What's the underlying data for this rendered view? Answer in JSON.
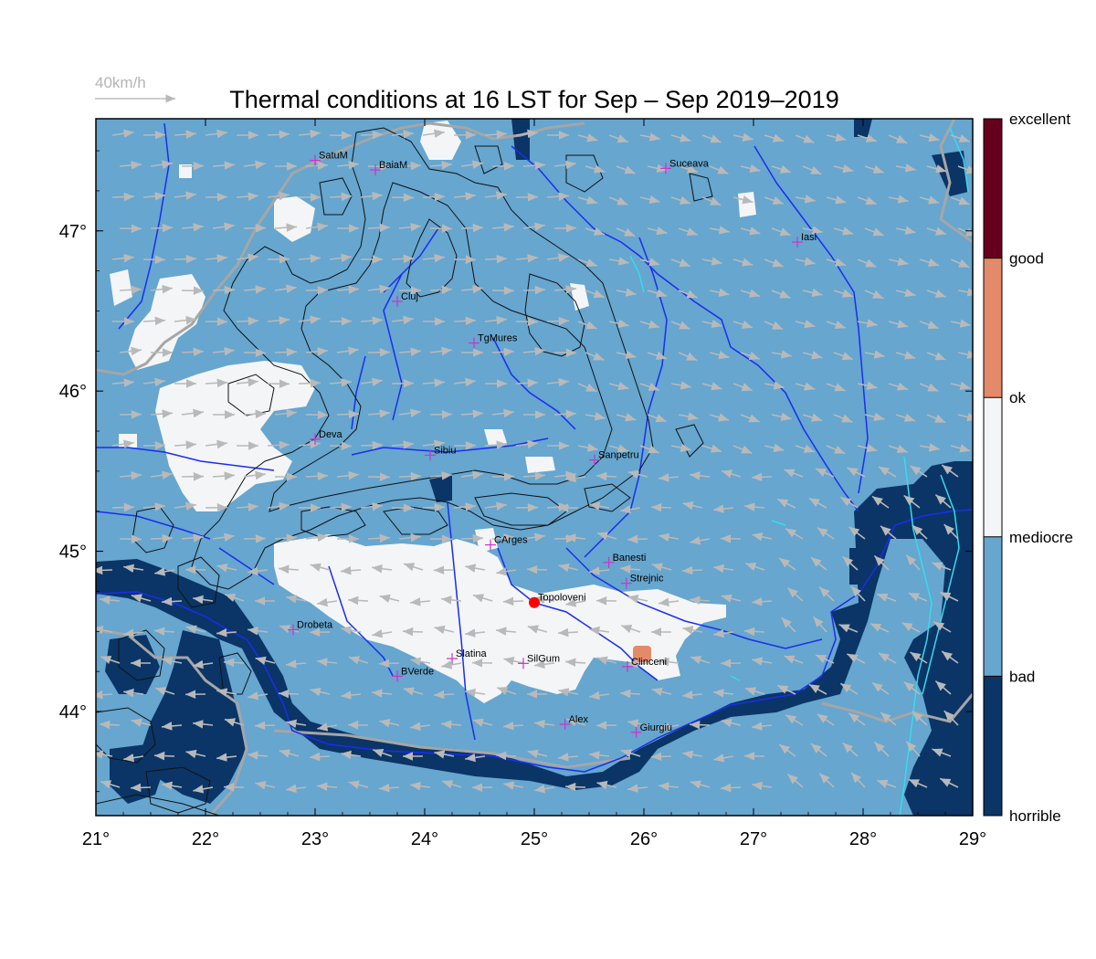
{
  "title": "Thermal conditions at 16 LST for Sep – Sep  2019–2019",
  "wind_reference": {
    "label": "40km/h"
  },
  "map": {
    "lon_range": [
      21,
      29
    ],
    "lat_range": [
      43.35,
      47.7
    ],
    "lon_ticks": [
      {
        "value": 21,
        "label": "21°"
      },
      {
        "value": 22,
        "label": "22°"
      },
      {
        "value": 23,
        "label": "23°"
      },
      {
        "value": 24,
        "label": "24°"
      },
      {
        "value": 25,
        "label": "25°"
      },
      {
        "value": 26,
        "label": "26°"
      },
      {
        "value": 27,
        "label": "27°"
      },
      {
        "value": 28,
        "label": "28°"
      },
      {
        "value": 29,
        "label": "29°"
      }
    ],
    "lat_ticks": [
      {
        "value": 44,
        "label": "44°"
      },
      {
        "value": 45,
        "label": "45°"
      },
      {
        "value": 46,
        "label": "46°"
      },
      {
        "value": 47,
        "label": "47°"
      }
    ],
    "colors": {
      "bad": "#66a6cf",
      "horrible": "#0a3566",
      "mediocre": "#f4f5f6",
      "ok": "#e48a6a",
      "good": "#67001f",
      "rivers": "#1a2df0",
      "wind": "#b9b9b9",
      "contour": "#111111",
      "city_marker": "#cc33cc",
      "highlight": "#ff0000",
      "border_gray": "#a6a6a6",
      "lakes": "#33ddee"
    },
    "cities": [
      {
        "name": "SatuM",
        "lon": 23.0,
        "lat": 47.44
      },
      {
        "name": "BaiaM",
        "lon": 23.55,
        "lat": 47.38
      },
      {
        "name": "Suceava",
        "lon": 26.2,
        "lat": 47.39
      },
      {
        "name": "Iasi",
        "lon": 27.4,
        "lat": 46.93
      },
      {
        "name": "Cluj",
        "lon": 23.75,
        "lat": 46.56
      },
      {
        "name": "TgMures",
        "lon": 24.45,
        "lat": 46.3
      },
      {
        "name": "Deva",
        "lon": 23.0,
        "lat": 45.7
      },
      {
        "name": "Sibiu",
        "lon": 24.05,
        "lat": 45.6
      },
      {
        "name": "Sanpetru",
        "lon": 25.55,
        "lat": 45.57
      },
      {
        "name": "CArges",
        "lon": 24.6,
        "lat": 45.04
      },
      {
        "name": "Banesti",
        "lon": 25.68,
        "lat": 44.93
      },
      {
        "name": "Strejnic",
        "lon": 25.84,
        "lat": 44.8
      },
      {
        "name": "Topoloveni",
        "lon": 25.0,
        "lat": 44.68,
        "highlight": true
      },
      {
        "name": "Drobeta",
        "lon": 22.8,
        "lat": 44.51
      },
      {
        "name": "Slatina",
        "lon": 24.25,
        "lat": 44.33
      },
      {
        "name": "SilGum",
        "lon": 24.9,
        "lat": 44.3
      },
      {
        "name": "Clinceni",
        "lon": 25.85,
        "lat": 44.28
      },
      {
        "name": "BVerde",
        "lon": 23.75,
        "lat": 44.22
      },
      {
        "name": "Alex",
        "lon": 25.28,
        "lat": 43.92
      },
      {
        "name": "Giurgiu",
        "lon": 25.93,
        "lat": 43.87
      }
    ]
  },
  "legend": {
    "levels": [
      {
        "label": "excellent",
        "color": "#67001f",
        "value": 1.0
      },
      {
        "label": "good",
        "color": "#e48a6a",
        "value": 0.8
      },
      {
        "label": "ok",
        "color": "#f4f5f6",
        "value": 0.6
      },
      {
        "label": "mediocre",
        "color": "#66a6cf",
        "value": 0.4
      },
      {
        "label": "bad",
        "color": "#0a3566",
        "value": 0.2
      },
      {
        "label": "horrible",
        "value": 0.0
      }
    ]
  }
}
